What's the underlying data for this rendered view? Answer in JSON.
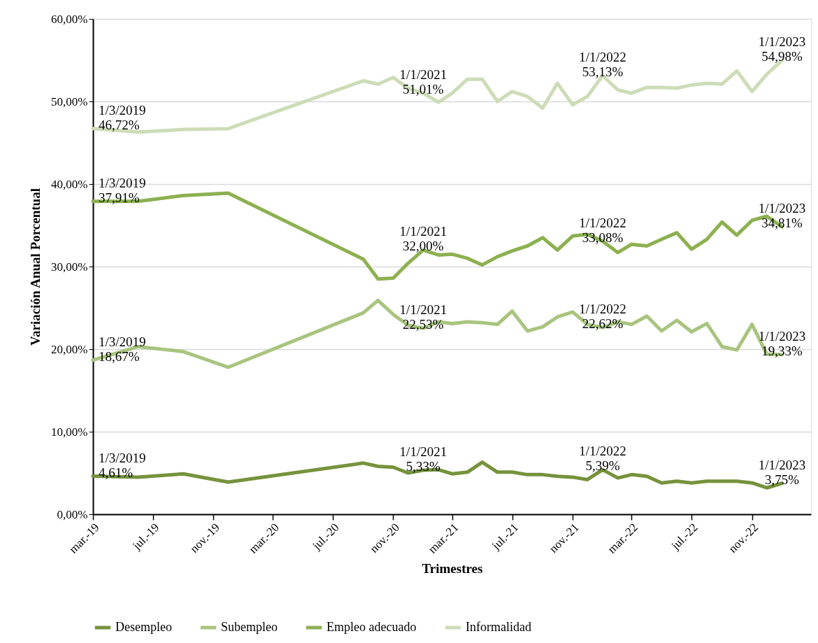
{
  "chart_data": {
    "type": "line",
    "xlabel": "Trimestres",
    "ylabel": "Variación Anual Porcentual",
    "x": [
      "2019-03",
      "2019-06",
      "2019-09",
      "2019-12",
      "2020-09",
      "2020-10",
      "2020-11",
      "2020-12",
      "2021-01",
      "2021-02",
      "2021-03",
      "2021-04",
      "2021-05",
      "2021-06",
      "2021-07",
      "2021-08",
      "2021-09",
      "2021-10",
      "2021-11",
      "2021-12",
      "2022-01",
      "2022-02",
      "2022-03",
      "2022-04",
      "2022-05",
      "2022-06",
      "2022-07",
      "2022-08",
      "2022-09",
      "2022-10",
      "2022-11",
      "2022-12",
      "2023-01"
    ],
    "series": [
      {
        "name": "Desempleo",
        "color": "#76923c",
        "values": [
          4.61,
          4.5,
          4.9,
          3.9,
          6.2,
          5.8,
          5.7,
          5.0,
          5.33,
          5.4,
          4.9,
          5.1,
          6.3,
          5.1,
          5.1,
          4.8,
          4.8,
          4.6,
          4.5,
          4.2,
          5.39,
          4.4,
          4.8,
          4.6,
          3.8,
          4.0,
          3.8,
          4.0,
          4.0,
          4.0,
          3.8,
          3.2,
          3.75
        ]
      },
      {
        "name": "Subempleo",
        "color": "#a9c47f",
        "values": [
          18.67,
          20.3,
          19.7,
          17.8,
          24.4,
          25.9,
          24.2,
          22.9,
          22.53,
          23.3,
          23.1,
          23.3,
          23.2,
          23.0,
          24.6,
          22.2,
          22.7,
          23.9,
          24.5,
          23.0,
          22.62,
          23.3,
          23.0,
          24.0,
          22.2,
          23.5,
          22.1,
          23.1,
          20.3,
          19.9,
          23.0,
          19.4,
          19.33
        ]
      },
      {
        "name": "Empleo adecuado",
        "color": "#8db050",
        "values": [
          37.91,
          37.9,
          38.6,
          38.9,
          30.9,
          28.5,
          28.6,
          30.4,
          32.0,
          31.4,
          31.5,
          31.0,
          30.2,
          31.2,
          31.9,
          32.5,
          33.5,
          32.0,
          33.7,
          33.9,
          33.08,
          31.7,
          32.7,
          32.5,
          33.3,
          34.1,
          32.1,
          33.3,
          35.4,
          33.8,
          35.6,
          36.1,
          34.81
        ]
      },
      {
        "name": "Informalidad",
        "color": "#cddcb7",
        "values": [
          46.72,
          46.3,
          46.6,
          46.7,
          52.5,
          52.1,
          52.9,
          51.6,
          51.01,
          49.9,
          51.0,
          52.7,
          52.7,
          50.0,
          51.2,
          50.6,
          49.2,
          52.2,
          49.6,
          50.6,
          53.13,
          51.4,
          51.0,
          51.7,
          51.7,
          51.6,
          52.0,
          52.2,
          52.1,
          53.7,
          51.2,
          53.3,
          54.98
        ]
      }
    ],
    "annotations": [
      {
        "text": "1/3/2019\n4,61%",
        "x": "2019-03",
        "y": 4.61
      },
      {
        "text": "1/1/2021\n5,33%",
        "x": "2021-01",
        "y": 5.33
      },
      {
        "text": "1/1/2022\n5,39%",
        "x": "2022-01",
        "y": 5.39
      },
      {
        "text": "1/1/2023\n3,75%",
        "x": "2023-01",
        "y": 3.75
      },
      {
        "text": "1/3/2019\n18,67%",
        "x": "2019-03",
        "y": 18.67
      },
      {
        "text": "1/1/2021\n22,53%",
        "x": "2021-01",
        "y": 22.53
      },
      {
        "text": "1/1/2022\n22,62%",
        "x": "2022-01",
        "y": 22.62
      },
      {
        "text": "1/1/2023\n19,33%",
        "x": "2023-01",
        "y": 19.33
      },
      {
        "text": "1/3/2019\n37,91%",
        "x": "2019-03",
        "y": 37.91
      },
      {
        "text": "1/1/2021\n32,00%",
        "x": "2021-01",
        "y": 32.0
      },
      {
        "text": "1/1/2022\n33,08%",
        "x": "2022-01",
        "y": 33.08
      },
      {
        "text": "1/1/2023\n34,81%",
        "x": "2023-01",
        "y": 34.81
      },
      {
        "text": "1/3/2019\n46,72%",
        "x": "2019-03",
        "y": 46.72
      },
      {
        "text": "1/1/2021\n51,01%",
        "x": "2021-01",
        "y": 51.01
      },
      {
        "text": "1/1/2022\n53,13%",
        "x": "2022-01",
        "y": 53.13
      },
      {
        "text": "1/1/2023\n54,98%",
        "x": "2023-01",
        "y": 54.98
      }
    ],
    "xlim": [
      "2019-03",
      "2023-03"
    ],
    "xticks": [
      {
        "value": "2019-03",
        "label": "mar.-19"
      },
      {
        "value": "2019-07",
        "label": "jul.-19"
      },
      {
        "value": "2019-11",
        "label": "nov.-19"
      },
      {
        "value": "2020-03",
        "label": "mar.-20"
      },
      {
        "value": "2020-07",
        "label": "jul.-20"
      },
      {
        "value": "2020-11",
        "label": "nov.-20"
      },
      {
        "value": "2021-03",
        "label": "mar.-21"
      },
      {
        "value": "2021-07",
        "label": "jul.-21"
      },
      {
        "value": "2021-11",
        "label": "nov.-21"
      },
      {
        "value": "2022-03",
        "label": "mar.-22"
      },
      {
        "value": "2022-07",
        "label": "jul.-22"
      },
      {
        "value": "2022-11",
        "label": "nov.-22"
      }
    ],
    "ylim": [
      0,
      60
    ],
    "yticks": [
      {
        "value": 0,
        "label": "0,00%"
      },
      {
        "value": 10,
        "label": "10,00%"
      },
      {
        "value": 20,
        "label": "20,00%"
      },
      {
        "value": 30,
        "label": "30,00%"
      },
      {
        "value": 40,
        "label": "40,00%"
      },
      {
        "value": 50,
        "label": "50,00%"
      },
      {
        "value": 60,
        "label": "60,00%"
      }
    ],
    "grid": "y",
    "legend": "bottom",
    "marker": "none",
    "line_style": "solid"
  }
}
